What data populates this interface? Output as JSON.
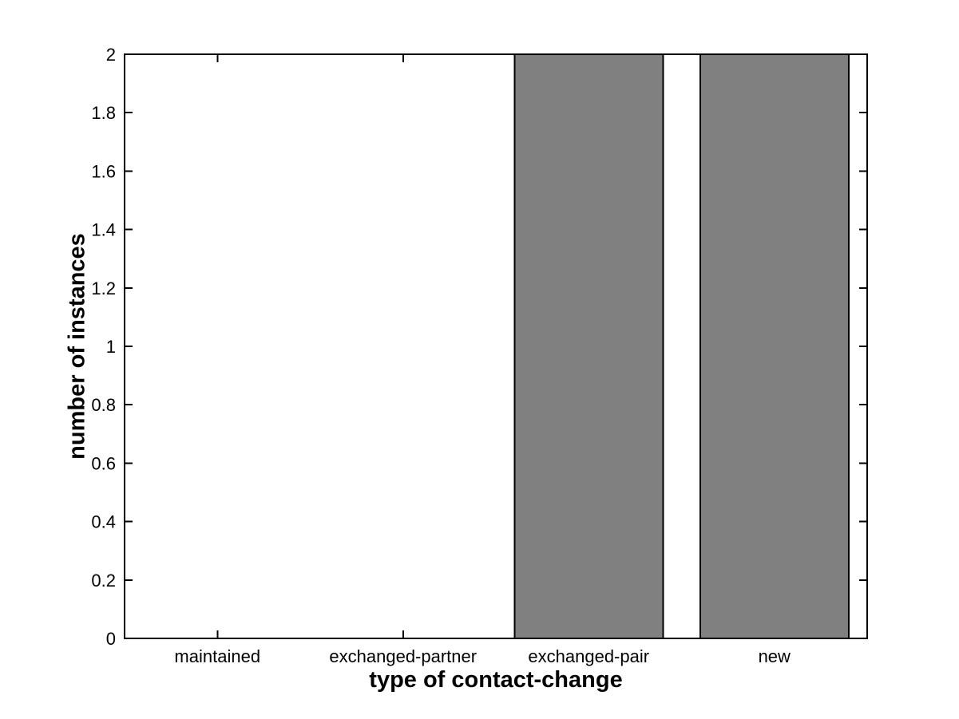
{
  "figure": {
    "background_color": "#ffffff"
  },
  "chart_data": {
    "type": "bar",
    "title": "",
    "categories": [
      "maintained",
      "exchanged-partner",
      "exchanged-pair",
      "new"
    ],
    "values": [
      0,
      0,
      2,
      2
    ],
    "xlabel": "type of contact-change",
    "ylabel": "number of instances",
    "ylim": [
      0,
      2
    ],
    "yticks": [
      0,
      0.2,
      0.4,
      0.6,
      0.8,
      1,
      1.2,
      1.4,
      1.6,
      1.8,
      2
    ],
    "ytick_labels": [
      "0",
      "0.2",
      "0.4",
      "0.6",
      "0.8",
      "1",
      "1.2",
      "1.4",
      "1.6",
      "1.8",
      "2"
    ],
    "bar_width_fraction": 0.8,
    "grid": false,
    "legend": false,
    "box": true,
    "tick_direction": "in",
    "bar_color": "#808080",
    "bar_edge_color": "#000000",
    "axis_color": "#000000",
    "text_color": "#000000"
  }
}
